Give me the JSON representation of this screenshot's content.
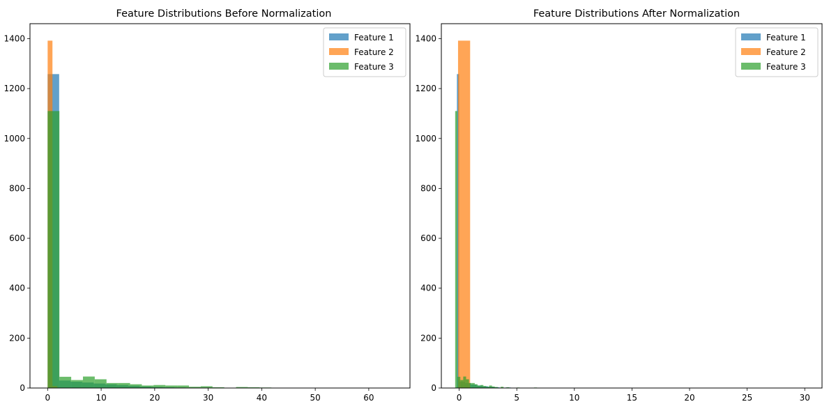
{
  "colors": {
    "feature1": "#1f77b4",
    "feature2": "#ff7f0e",
    "feature3": "#2ca02c"
  },
  "chart_data": [
    {
      "type": "histogram",
      "title": "Feature Distributions Before Normalization",
      "xlabel": "",
      "ylabel": "",
      "xlim": [
        -3.3,
        67.7
      ],
      "ylim": [
        0,
        1460
      ],
      "xticks": [
        0,
        10,
        20,
        30,
        40,
        50,
        60
      ],
      "yticks": [
        0,
        200,
        400,
        600,
        800,
        1000,
        1200,
        1400
      ],
      "legend_position": "top-right",
      "alpha": 0.7,
      "series": [
        {
          "name": "Feature 1",
          "color": "#1f77b4",
          "bins": [
            {
              "x0": 0.0,
              "x1": 2.15,
              "count": 1258
            },
            {
              "x0": 2.15,
              "x1": 4.3,
              "count": 30
            },
            {
              "x0": 4.3,
              "x1": 6.45,
              "count": 25
            },
            {
              "x0": 6.45,
              "x1": 8.6,
              "count": 22
            },
            {
              "x0": 8.6,
              "x1": 10.75,
              "count": 18
            },
            {
              "x0": 10.75,
              "x1": 12.9,
              "count": 15
            },
            {
              "x0": 12.9,
              "x1": 15.05,
              "count": 12
            },
            {
              "x0": 15.05,
              "x1": 17.2,
              "count": 9
            },
            {
              "x0": 17.2,
              "x1": 19.35,
              "count": 6
            },
            {
              "x0": 19.35,
              "x1": 21.5,
              "count": 4
            },
            {
              "x0": 21.5,
              "x1": 23.65,
              "count": 3
            },
            {
              "x0": 23.65,
              "x1": 25.8,
              "count": 2
            },
            {
              "x0": 25.8,
              "x1": 27.95,
              "count": 1
            },
            {
              "x0": 34.4,
              "x1": 36.55,
              "count": 1
            },
            {
              "x0": 38.7,
              "x1": 40.85,
              "count": 1
            },
            {
              "x0": 62.35,
              "x1": 64.5,
              "count": 0
            }
          ]
        },
        {
          "name": "Feature 2",
          "color": "#ff7f0e",
          "bins": [
            {
              "x0": 0.0,
              "x1": 0.9,
              "count": 1392
            },
            {
              "x0": 0.9,
              "x1": 1.8,
              "count": 8
            }
          ]
        },
        {
          "name": "Feature 3",
          "color": "#2ca02c",
          "bins": [
            {
              "x0": 0.0,
              "x1": 2.2,
              "count": 1110
            },
            {
              "x0": 2.2,
              "x1": 4.4,
              "count": 45
            },
            {
              "x0": 4.4,
              "x1": 6.6,
              "count": 32
            },
            {
              "x0": 6.6,
              "x1": 8.8,
              "count": 46
            },
            {
              "x0": 8.8,
              "x1": 11.0,
              "count": 35
            },
            {
              "x0": 11.0,
              "x1": 13.2,
              "count": 20
            },
            {
              "x0": 13.2,
              "x1": 15.4,
              "count": 20
            },
            {
              "x0": 15.4,
              "x1": 17.6,
              "count": 15
            },
            {
              "x0": 17.6,
              "x1": 19.8,
              "count": 10
            },
            {
              "x0": 19.8,
              "x1": 22.0,
              "count": 12
            },
            {
              "x0": 22.0,
              "x1": 24.2,
              "count": 10
            },
            {
              "x0": 24.2,
              "x1": 26.4,
              "count": 10
            },
            {
              "x0": 26.4,
              "x1": 28.6,
              "count": 5
            },
            {
              "x0": 28.6,
              "x1": 30.8,
              "count": 7
            },
            {
              "x0": 30.8,
              "x1": 33.0,
              "count": 3
            },
            {
              "x0": 35.2,
              "x1": 37.4,
              "count": 4
            },
            {
              "x0": 37.4,
              "x1": 39.6,
              "count": 3
            },
            {
              "x0": 39.6,
              "x1": 41.8,
              "count": 2
            },
            {
              "x0": 63.8,
              "x1": 66.0,
              "count": 1
            }
          ]
        }
      ]
    },
    {
      "type": "histogram",
      "title": "Feature Distributions After Normalization",
      "xlabel": "",
      "ylabel": "",
      "xlim": [
        -1.55,
        31.5
      ],
      "ylim": [
        0,
        1460
      ],
      "xticks": [
        0,
        5,
        10,
        15,
        20,
        25,
        30
      ],
      "yticks": [
        0,
        200,
        400,
        600,
        800,
        1000,
        1200,
        1400
      ],
      "legend_position": "top-right",
      "alpha": 0.7,
      "series": [
        {
          "name": "Feature 1",
          "color": "#1f77b4",
          "bins": [
            {
              "x0": -0.2,
              "x1": 0.0,
              "count": 1258
            },
            {
              "x0": 0.0,
              "x1": 0.5,
              "count": 25
            },
            {
              "x0": 0.5,
              "x1": 1.0,
              "count": 20
            },
            {
              "x0": 1.0,
              "x1": 1.5,
              "count": 14
            },
            {
              "x0": 1.5,
              "x1": 2.0,
              "count": 10
            },
            {
              "x0": 2.0,
              "x1": 2.5,
              "count": 7
            },
            {
              "x0": 2.5,
              "x1": 3.0,
              "count": 5
            },
            {
              "x0": 3.0,
              "x1": 3.5,
              "count": 3
            },
            {
              "x0": 4.0,
              "x1": 4.5,
              "count": 2
            },
            {
              "x0": 6.0,
              "x1": 6.5,
              "count": 1
            },
            {
              "x0": 29.5,
              "x1": 30.0,
              "count": 0
            }
          ]
        },
        {
          "name": "Feature 2",
          "color": "#ff7f0e",
          "bins": [
            {
              "x0": -0.1,
              "x1": 0.95,
              "count": 1392
            },
            {
              "x0": 0.95,
              "x1": 1.9,
              "count": 0
            },
            {
              "x0": 28.5,
              "x1": 30.0,
              "count": 1
            }
          ]
        },
        {
          "name": "Feature 3",
          "color": "#2ca02c",
          "bins": [
            {
              "x0": -0.35,
              "x1": -0.15,
              "count": 1110
            },
            {
              "x0": -0.15,
              "x1": 0.1,
              "count": 45
            },
            {
              "x0": 0.1,
              "x1": 0.35,
              "count": 32
            },
            {
              "x0": 0.35,
              "x1": 0.6,
              "count": 46
            },
            {
              "x0": 0.6,
              "x1": 0.85,
              "count": 35
            },
            {
              "x0": 0.85,
              "x1": 1.1,
              "count": 20
            },
            {
              "x0": 1.1,
              "x1": 1.35,
              "count": 20
            },
            {
              "x0": 1.35,
              "x1": 1.6,
              "count": 15
            },
            {
              "x0": 1.6,
              "x1": 1.85,
              "count": 10
            },
            {
              "x0": 1.85,
              "x1": 2.1,
              "count": 12
            },
            {
              "x0": 2.1,
              "x1": 2.35,
              "count": 8
            },
            {
              "x0": 2.35,
              "x1": 2.6,
              "count": 5
            },
            {
              "x0": 2.6,
              "x1": 2.85,
              "count": 10
            },
            {
              "x0": 2.85,
              "x1": 3.1,
              "count": 6
            },
            {
              "x0": 3.1,
              "x1": 3.35,
              "count": 4
            },
            {
              "x0": 3.6,
              "x1": 3.85,
              "count": 5
            },
            {
              "x0": 4.1,
              "x1": 4.35,
              "count": 3
            },
            {
              "x0": 5.0,
              "x1": 5.25,
              "count": 2
            },
            {
              "x0": 6.5,
              "x1": 6.75,
              "count": 2
            }
          ]
        }
      ]
    }
  ]
}
